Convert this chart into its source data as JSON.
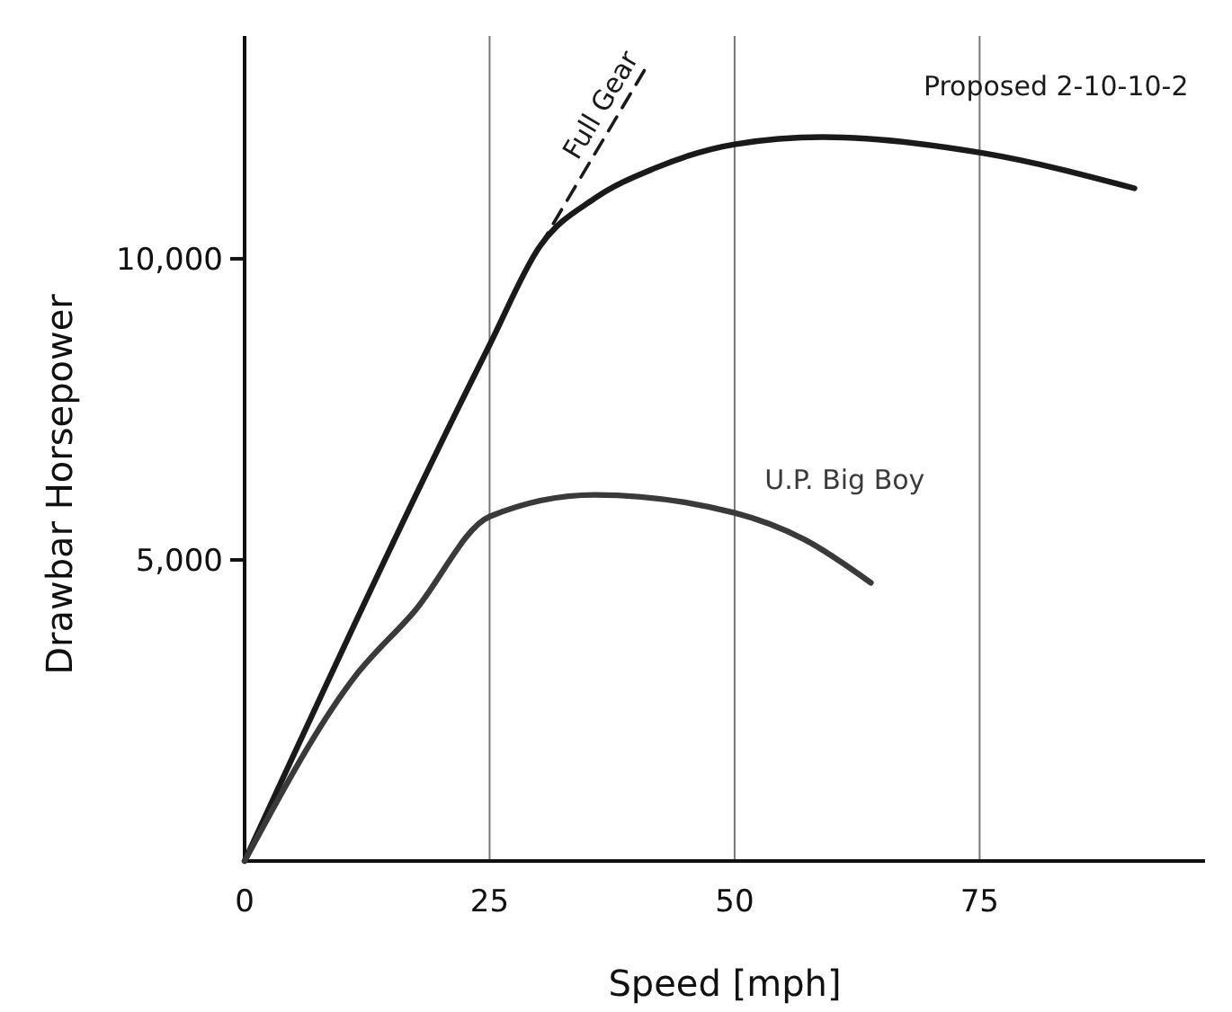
{
  "chart_data": {
    "type": "line",
    "xlabel": "Speed [mph]",
    "ylabel": "Drawbar Horsepower",
    "xlim": [
      0,
      98
    ],
    "ylim": [
      0,
      13700
    ],
    "xticks": [
      0,
      25,
      50,
      75
    ],
    "yticks": [
      {
        "value": 5000,
        "label": "5,000"
      },
      {
        "value": 10000,
        "label": "10,000"
      }
    ],
    "grid": "x",
    "legend": false,
    "marker": "none",
    "series": [
      {
        "name": "Proposed 2-10-10-2",
        "color": "#1a1a1a",
        "line_style": "solid",
        "x": [
          0,
          25,
          30.1,
          35.7,
          41.8,
          50,
          59,
          75.5,
          90.8
        ],
        "values": [
          0,
          8570,
          10200,
          11000,
          11500,
          11900,
          12020,
          11750,
          11170
        ]
      },
      {
        "name": "Full Gear",
        "color": "#1a1a1a",
        "line_style": "dashed",
        "x": [
          30.1,
          41.2
        ],
        "values": [
          10200,
          13240
        ]
      },
      {
        "name": "U.P. Big Boy",
        "color": "#3a3a3a",
        "line_style": "solid",
        "x": [
          0,
          11.2,
          17.3,
          25,
          35.7,
          50,
          57.1,
          63.9
        ],
        "values": [
          0,
          3050,
          4140,
          5720,
          6080,
          5780,
          5340,
          4620
        ]
      }
    ]
  }
}
